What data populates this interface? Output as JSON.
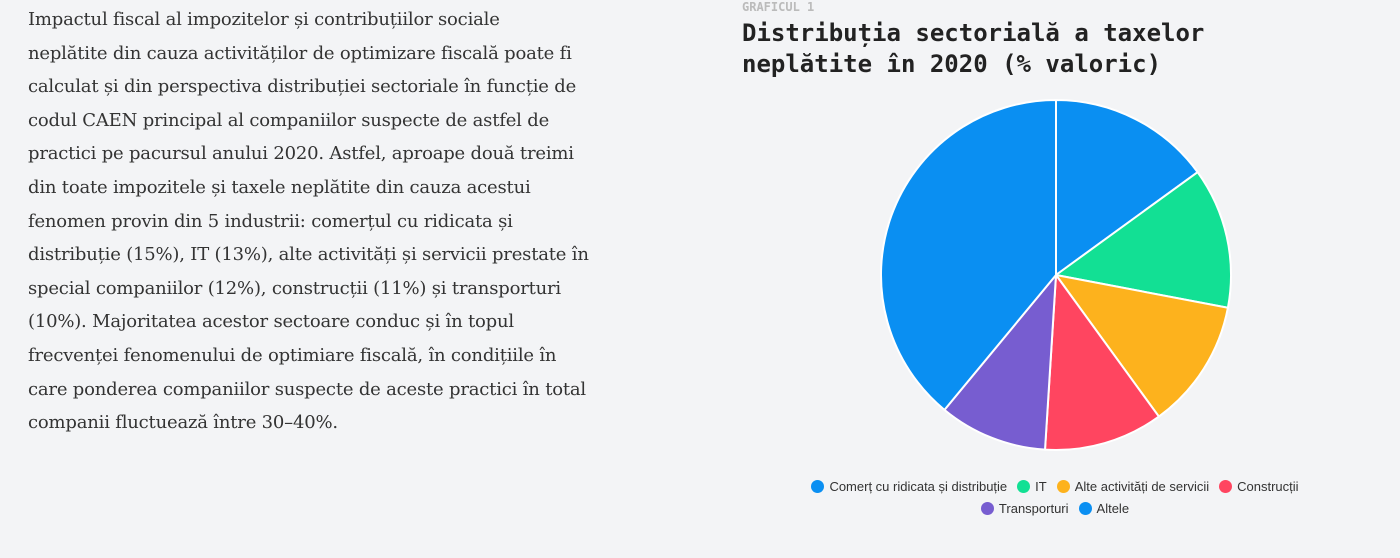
{
  "article": {
    "lines": [
      "Impactul fiscal al impozitelor și contribuțiilor sociale",
      "neplătite din cauza activităților de optimizare fiscală poate fi",
      "calculat și din perspectiva distribuției sectoriale în funcție de",
      "codul CAEN principal al companiilor suspecte de astfel de",
      "practici pe pacursul anului 2020. Astfel, aproape două treimi",
      "din toate impozitele și taxele neplătite din cauza acestui",
      "fenomen provin din 5 industrii: comerțul cu ridicata și",
      "distribuție (15%), IT (13%), alte activități și servicii prestate în",
      "special companiilor (12%), construcții (11%) și transporturi",
      "(10%). Majoritatea acestor sectoare conduc și în topul",
      "frecvenței fenomenului de optimiare fiscală, în condițiile în",
      "care ponderea companiilor suspecte de aceste practici în total",
      "companii fluctuează între 30–40%."
    ]
  },
  "chart_data": {
    "type": "pie",
    "label": "GRAFICUL 1",
    "title": "Distribuția sectorială a taxelor neplătite în 2020 (% valoric)",
    "categories": [
      "Comerț cu ridicata și distribuție",
      "IT",
      "Alte activități de servicii",
      "Construcții",
      "Transporturi",
      "Altele"
    ],
    "values": [
      15,
      13,
      12,
      11,
      10,
      39
    ],
    "colors": [
      "#0a8ff2",
      "#12e094",
      "#fdb21d",
      "#ff4560",
      "#775dd0",
      "#0a8ff2"
    ],
    "legend": "bottom"
  }
}
